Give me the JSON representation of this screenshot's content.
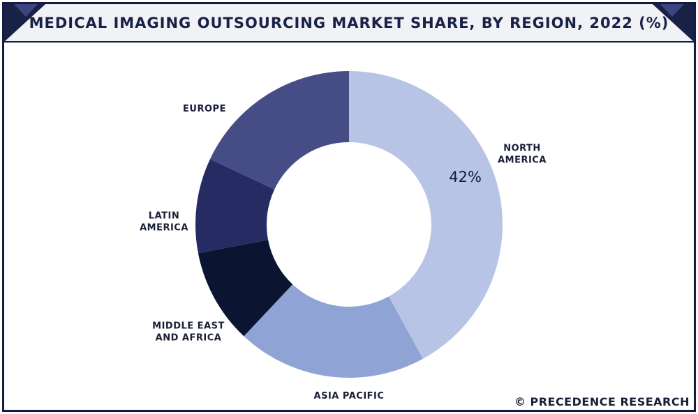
{
  "header": {
    "title": "MEDICAL IMAGING OUTSOURCING MARKET SHARE, BY REGION, 2022 (%)"
  },
  "footer": {
    "credit": "© PRECEDENCE RESEARCH"
  },
  "colors": {
    "navy": "#141c3f",
    "header_band": "#f1f2f6"
  },
  "chart_data": {
    "type": "pie",
    "variant": "donut",
    "title": "MEDICAL IMAGING OUTSOURCING MARKET SHARE, BY REGION, 2022 (%)",
    "categories": [
      "North America",
      "Asia Pacific",
      "Middle East and Africa",
      "Latin America",
      "Europe"
    ],
    "values": [
      42,
      20,
      10,
      10,
      18
    ],
    "value_labels_shown": [
      "42%",
      "",
      "",
      "",
      ""
    ],
    "slice_labels": [
      [
        "NORTH",
        "AMERICA"
      ],
      [
        "ASIA PACIFIC"
      ],
      [
        "MIDDLE EAST",
        "AND AFRICA"
      ],
      [
        "LATIN",
        "AMERICA"
      ],
      [
        "EUROPE"
      ]
    ],
    "colors": [
      "#b8c4e5",
      "#8fa3d5",
      "#0b1431",
      "#262c63",
      "#454c86"
    ],
    "start_angle_deg": 0,
    "direction": "clockwise",
    "legend": "none"
  }
}
